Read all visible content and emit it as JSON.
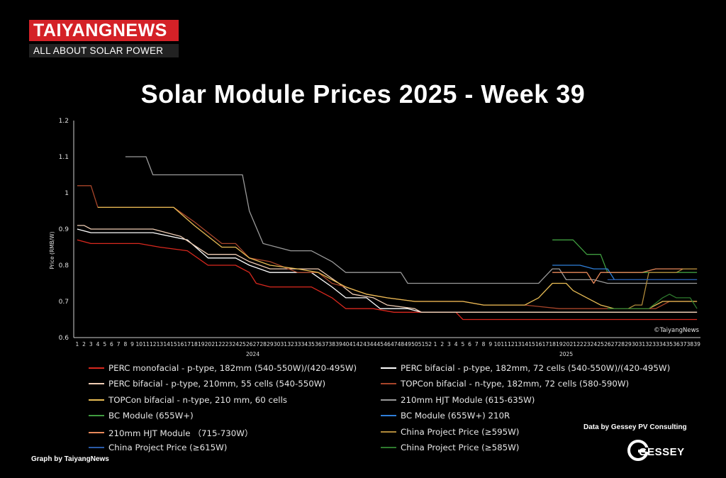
{
  "brand": {
    "name": "TAIYANGNEWS",
    "tagline": "ALL ABOUT SOLAR POWER"
  },
  "title": "Solar Module Prices 2025 - Week 39",
  "credits": {
    "graph_by": "Graph by TaiyangNews",
    "data_by": "Data by Gessey PV Consulting",
    "gessey_logo": "GESSEY"
  },
  "chart_data": {
    "type": "line",
    "title": "Solar Module Prices 2025 - Week 39",
    "xlabel": "",
    "ylabel": "Price (RMB/W)",
    "ylim": [
      0.6,
      1.2
    ],
    "yticks": [
      "0.6",
      "0.7",
      "0.8",
      "0.9",
      "1",
      "1.1",
      "1.2"
    ],
    "grid": false,
    "watermark": "©TaiyangNews",
    "x_groups": [
      {
        "label": "2024",
        "weeks": 52
      },
      {
        "label": "2025",
        "weeks": 39
      }
    ],
    "series": [
      {
        "name": "PERC monofacial - p-type, 182mm (540-550W)/(420-495W)",
        "color": "#d9281e",
        "points": [
          [
            1,
            0.87
          ],
          [
            3,
            0.86
          ],
          [
            10,
            0.86
          ],
          [
            13,
            0.85
          ],
          [
            17,
            0.84
          ],
          [
            20,
            0.8
          ],
          [
            24,
            0.8
          ],
          [
            26,
            0.78
          ],
          [
            27,
            0.75
          ],
          [
            29,
            0.74
          ],
          [
            35,
            0.74
          ],
          [
            38,
            0.71
          ],
          [
            40,
            0.68
          ],
          [
            44,
            0.68
          ],
          [
            47,
            0.67
          ],
          [
            56,
            0.67
          ],
          [
            57,
            0.65
          ],
          [
            91,
            0.65
          ]
        ]
      },
      {
        "name": "PERC bifacial - p-type, 182mm, 72 cells (540-550W)/(420-495W)",
        "color": "#ffffff",
        "points": [
          [
            1,
            0.9
          ],
          [
            3,
            0.89
          ],
          [
            12,
            0.89
          ],
          [
            17,
            0.87
          ],
          [
            20,
            0.82
          ],
          [
            24,
            0.82
          ],
          [
            26,
            0.8
          ],
          [
            29,
            0.78
          ],
          [
            35,
            0.78
          ],
          [
            38,
            0.74
          ],
          [
            40,
            0.71
          ],
          [
            43,
            0.71
          ],
          [
            45,
            0.68
          ],
          [
            49,
            0.68
          ],
          [
            51,
            0.67
          ],
          [
            91,
            0.67
          ]
        ]
      },
      {
        "name": "PERC bifacial - p-type, 210mm, 55 cells (540-550W)",
        "color": "#f0cdb4",
        "points": [
          [
            1,
            0.91
          ],
          [
            2,
            0.91
          ],
          [
            3,
            0.9
          ],
          [
            12,
            0.9
          ],
          [
            16,
            0.88
          ],
          [
            20,
            0.83
          ],
          [
            24,
            0.83
          ],
          [
            26,
            0.81
          ],
          [
            29,
            0.79
          ],
          [
            36,
            0.79
          ],
          [
            39,
            0.75
          ],
          [
            41,
            0.72
          ],
          [
            44,
            0.71
          ],
          [
            46,
            0.69
          ],
          [
            50,
            0.68
          ],
          [
            51,
            0.67
          ],
          [
            91,
            0.67
          ]
        ]
      },
      {
        "name": "TOPCon bifacial - n-type, 182mm, 72 cells (580-590W)",
        "color": "#a8452a",
        "points": [
          [
            1,
            1.02
          ],
          [
            3,
            1.02
          ],
          [
            4,
            0.96
          ],
          [
            15,
            0.96
          ],
          [
            18,
            0.92
          ],
          [
            22,
            0.86
          ],
          [
            24,
            0.86
          ],
          [
            26,
            0.82
          ],
          [
            29,
            0.81
          ],
          [
            33,
            0.78
          ],
          [
            36,
            0.78
          ],
          [
            38,
            0.75
          ],
          [
            40,
            0.74
          ],
          [
            43,
            0.72
          ],
          [
            46,
            0.71
          ],
          [
            50,
            0.7
          ],
          [
            57,
            0.7
          ],
          [
            60,
            0.69
          ],
          [
            66,
            0.69
          ],
          [
            71,
            0.68
          ],
          [
            80,
            0.68
          ],
          [
            85,
            0.68
          ],
          [
            87,
            0.7
          ],
          [
            91,
            0.7
          ]
        ]
      },
      {
        "name": "TOPCon bifacial - n-type, 210 mm, 60 cells",
        "color": "#e9bd55",
        "points": [
          [
            4,
            0.96
          ],
          [
            15,
            0.96
          ],
          [
            18,
            0.91
          ],
          [
            22,
            0.85
          ],
          [
            24,
            0.85
          ],
          [
            26,
            0.82
          ],
          [
            29,
            0.8
          ],
          [
            33,
            0.79
          ],
          [
            36,
            0.78
          ],
          [
            38,
            0.76
          ],
          [
            40,
            0.74
          ],
          [
            43,
            0.72
          ],
          [
            46,
            0.71
          ],
          [
            50,
            0.7
          ],
          [
            57,
            0.7
          ],
          [
            60,
            0.69
          ],
          [
            66,
            0.69
          ],
          [
            68,
            0.71
          ],
          [
            70,
            0.75
          ],
          [
            72,
            0.75
          ],
          [
            73,
            0.73
          ],
          [
            75,
            0.71
          ],
          [
            77,
            0.69
          ],
          [
            79,
            0.68
          ],
          [
            84,
            0.68
          ],
          [
            86,
            0.7
          ],
          [
            91,
            0.7
          ]
        ]
      },
      {
        "name": "210mm HJT Module (615-635W)",
        "color": "#9a9a9a",
        "points": [
          [
            8,
            1.1
          ],
          [
            11,
            1.1
          ],
          [
            12,
            1.05
          ],
          [
            25,
            1.05
          ],
          [
            26,
            0.95
          ],
          [
            28,
            0.86
          ],
          [
            30,
            0.85
          ],
          [
            32,
            0.84
          ],
          [
            35,
            0.84
          ],
          [
            37,
            0.82
          ],
          [
            38,
            0.81
          ],
          [
            40,
            0.78
          ],
          [
            48,
            0.78
          ],
          [
            49,
            0.75
          ],
          [
            68,
            0.75
          ],
          [
            70,
            0.79
          ],
          [
            71,
            0.79
          ],
          [
            72,
            0.76
          ],
          [
            76,
            0.76
          ],
          [
            78,
            0.75
          ],
          [
            91,
            0.75
          ]
        ]
      },
      {
        "name": "BC Module (655W+)",
        "color": "#3f9c3f",
        "points": [
          [
            70,
            0.87
          ],
          [
            73,
            0.87
          ],
          [
            75,
            0.83
          ],
          [
            77,
            0.83
          ],
          [
            78,
            0.78
          ],
          [
            91,
            0.78
          ]
        ]
      },
      {
        "name": "BC Module (655W+) 210R",
        "color": "#2f7fd9",
        "points": [
          [
            70,
            0.8
          ],
          [
            74,
            0.8
          ],
          [
            76,
            0.79
          ],
          [
            78,
            0.79
          ],
          [
            79,
            0.76
          ],
          [
            91,
            0.76
          ]
        ]
      },
      {
        "name": "210mm HJT Module （715-730W）",
        "color": "#e8895a",
        "points": [
          [
            70,
            0.78
          ],
          [
            75,
            0.78
          ],
          [
            76,
            0.75
          ],
          [
            77,
            0.78
          ],
          [
            83,
            0.78
          ],
          [
            85,
            0.79
          ],
          [
            91,
            0.79
          ]
        ]
      },
      {
        "name": "China Project Price (≥595W)",
        "color": "#b08a3a",
        "points": [
          [
            78,
            0.68
          ],
          [
            81,
            0.68
          ],
          [
            82,
            0.69
          ],
          [
            83,
            0.69
          ],
          [
            84,
            0.78
          ],
          [
            88,
            0.78
          ],
          [
            89,
            0.79
          ],
          [
            91,
            0.79
          ]
        ]
      },
      {
        "name": "China Project Price (≥615W)",
        "color": "#2a5ba8",
        "points": [
          [
            78,
            0.76
          ],
          [
            91,
            0.76
          ]
        ]
      },
      {
        "name": "China Project Price (≥585W)",
        "color": "#2e7a2e",
        "points": [
          [
            78,
            0.68
          ],
          [
            84,
            0.68
          ],
          [
            86,
            0.71
          ],
          [
            87,
            0.72
          ],
          [
            88,
            0.71
          ],
          [
            90,
            0.71
          ],
          [
            91,
            0.68
          ]
        ]
      }
    ]
  }
}
